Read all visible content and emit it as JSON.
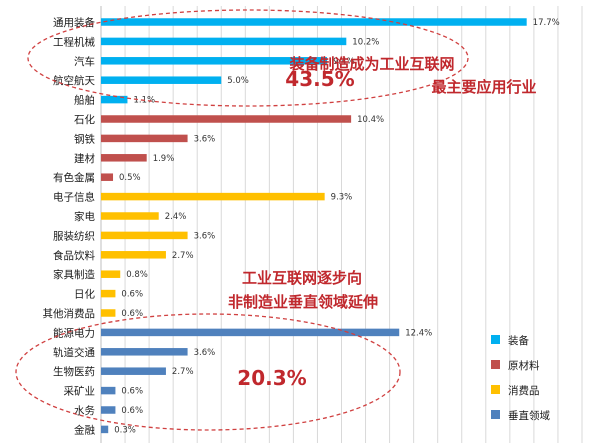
{
  "chart_data": {
    "type": "bar",
    "orientation": "horizontal",
    "categories": [
      "通用装备",
      "工程机械",
      "汽车",
      "航空航天",
      "船舶",
      "石化",
      "钢铁",
      "建材",
      "有色金属",
      "电子信息",
      "家电",
      "服装纺织",
      "食品饮料",
      "家具制造",
      "日化",
      "其他消费品",
      "能源电力",
      "轨道交通",
      "生物医药",
      "采矿业",
      "水务",
      "金融"
    ],
    "values": [
      17.7,
      10.2,
      9.4,
      5.0,
      1.1,
      10.4,
      3.6,
      1.9,
      0.5,
      9.3,
      2.4,
      3.6,
      2.7,
      0.8,
      0.6,
      0.6,
      12.4,
      3.6,
      2.7,
      0.6,
      0.6,
      0.3
    ],
    "value_labels": [
      "17.7%",
      "10.2%",
      "9.4%",
      "5.0%",
      "1.1%",
      "10.4%",
      "3.6%",
      "1.9%",
      "0.5%",
      "9.3%",
      "2.4%",
      "3.6%",
      "2.7%",
      "0.8%",
      "0.6%",
      "0.6%",
      "12.4%",
      "3.6%",
      "2.7%",
      "0.6%",
      "0.6%",
      "0.3%"
    ],
    "groups": [
      "装备",
      "装备",
      "装备",
      "装备",
      "装备",
      "原材料",
      "原材料",
      "原材料",
      "原材料",
      "消费品",
      "消费品",
      "消费品",
      "消费品",
      "消费品",
      "消费品",
      "消费品",
      "垂直领域",
      "垂直领域",
      "垂直领域",
      "垂直领域",
      "垂直领域",
      "垂直领域"
    ],
    "legend": [
      {
        "name": "装备",
        "color": "#00b0f0"
      },
      {
        "name": "原材料",
        "color": "#c0504d"
      },
      {
        "name": "消费品",
        "color": "#ffc000"
      },
      {
        "name": "垂直领域",
        "color": "#4f81bd"
      }
    ],
    "xlim": [
      0,
      20
    ],
    "xtick_step": 1,
    "grid": true,
    "legend_position": "bottom-right",
    "annotations": [
      {
        "text_lines": [
          "装备制造成为工业互联网",
          "最主要应用行业"
        ],
        "value": "43.5%"
      },
      {
        "text_lines": [
          "工业互联网逐步向",
          "非制造业垂直领域延伸"
        ],
        "value": "20.3%"
      }
    ]
  }
}
